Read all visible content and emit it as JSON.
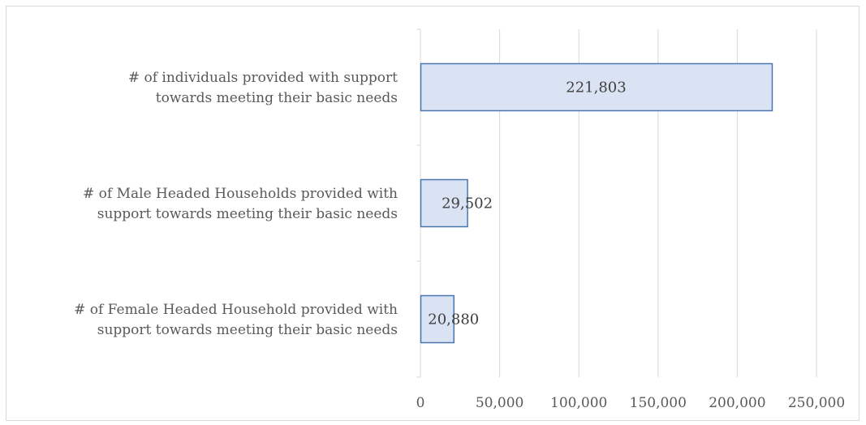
{
  "chart_data": {
    "type": "bar",
    "orientation": "horizontal",
    "categories": [
      [
        "# of individuals provided with support",
        "towards meeting their basic needs"
      ],
      [
        "# of Male Headed Households provided with",
        "support towards meeting their basic needs"
      ],
      [
        "# of Female Headed Household provided with",
        "support towards meeting their basic needs"
      ]
    ],
    "values": [
      221803,
      29502,
      20880
    ],
    "data_labels": [
      "221,803",
      "29,502",
      "20,880"
    ],
    "xlim": [
      0,
      250000
    ],
    "xticks": [
      0,
      50000,
      100000,
      150000,
      200000,
      250000
    ],
    "xtick_labels": [
      "0",
      "50,000",
      "100,000",
      "150,000",
      "200,000",
      "250,000"
    ],
    "grid": "vertical",
    "legend": "none",
    "colors": {
      "bar_fill": "#dae3f3",
      "bar_stroke": "#4a76b0",
      "grid": "#d9d9d9",
      "text": "#595959"
    }
  }
}
